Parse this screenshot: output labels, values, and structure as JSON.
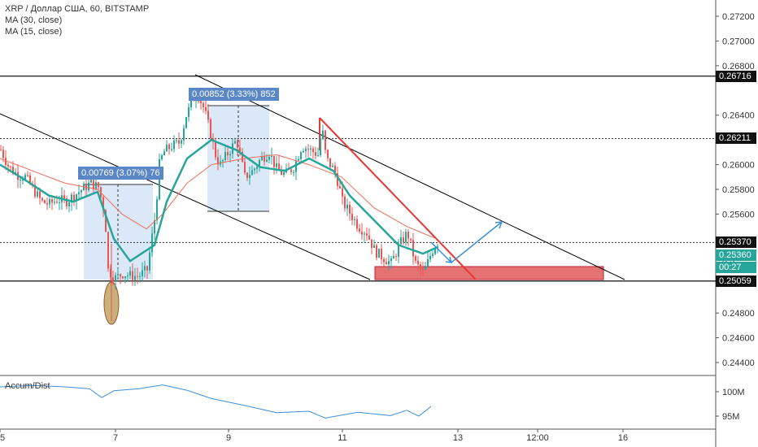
{
  "legend": {
    "title": "XRP / Доллар США, 60, BITSTAMP",
    "ma30": "MA (30, close)",
    "ma15": "MA (15, close)"
  },
  "indicator": {
    "name": "Accum/Dist"
  },
  "price_axis": {
    "ticks": [
      "0.27200",
      "0.27000",
      "0.26800",
      "0.26400",
      "0.26000",
      "0.25800",
      "0.25600",
      "0.24800",
      "0.24600",
      "0.24400"
    ],
    "tags": [
      {
        "label": "0.26716",
        "kind": "level"
      },
      {
        "label": "0.26211",
        "kind": "level"
      },
      {
        "label": "0.25370",
        "kind": "level"
      },
      {
        "label": "0.25360",
        "kind": "last"
      },
      {
        "label": "00:27",
        "kind": "timer"
      },
      {
        "label": "0.25059",
        "kind": "level"
      }
    ]
  },
  "indicator_axis": {
    "ticks": [
      "100M",
      "95M"
    ]
  },
  "time_axis": {
    "ticks": [
      "5",
      "7",
      "9",
      "11",
      "13",
      "12:00",
      "16"
    ]
  },
  "measurements": [
    {
      "label": "0.00769 (3.07%) 76"
    },
    {
      "label": "0.00852 (3.33%) 852"
    }
  ],
  "colors": {
    "up": "#26a69a",
    "down": "#ef5350",
    "ma30": "#ef6c57",
    "ma15": "#26a69a",
    "trend": "#000000",
    "red_trend": "#e53935",
    "zone": "#e57373",
    "arrow": "#3d8fd6",
    "measure_box": "#dbe8f8",
    "ellipse": "#c8b27a"
  },
  "chart_data": {
    "type": "candlestick",
    "title": "XRP / Доллар США, 60, BITSTAMP",
    "series": [
      {
        "name": "MA (30, close)"
      },
      {
        "name": "MA (15, close)"
      },
      {
        "name": "Accum/Dist"
      }
    ],
    "ylim": [
      0.243,
      0.2732
    ],
    "horizontal_levels": [
      0.26716,
      0.26211,
      0.2537,
      0.25059
    ],
    "last_price": 0.2536,
    "close_path": [
      [
        0,
        0.2612
      ],
      [
        10,
        0.2598
      ],
      [
        20,
        0.2592
      ],
      [
        30,
        0.259
      ],
      [
        40,
        0.258
      ],
      [
        50,
        0.257
      ],
      [
        60,
        0.2568
      ],
      [
        70,
        0.2572
      ],
      [
        80,
        0.257
      ],
      [
        90,
        0.2575
      ],
      [
        100,
        0.258
      ],
      [
        110,
        0.2585
      ],
      [
        120,
        0.2582
      ],
      [
        128,
        0.256
      ],
      [
        132,
        0.2515
      ],
      [
        140,
        0.2508
      ],
      [
        150,
        0.2512
      ],
      [
        160,
        0.251
      ],
      [
        170,
        0.251
      ],
      [
        180,
        0.2515
      ],
      [
        190,
        0.256
      ],
      [
        195,
        0.26
      ],
      [
        200,
        0.261
      ],
      [
        210,
        0.2615
      ],
      [
        220,
        0.2618
      ],
      [
        228,
        0.264
      ],
      [
        235,
        0.265
      ],
      [
        240,
        0.266
      ],
      [
        250,
        0.2645
      ],
      [
        260,
        0.262
      ],
      [
        265,
        0.2605
      ],
      [
        270,
        0.26
      ],
      [
        280,
        0.261
      ],
      [
        290,
        0.262
      ],
      [
        300,
        0.259
      ],
      [
        310,
        0.2595
      ],
      [
        320,
        0.2605
      ],
      [
        330,
        0.261
      ],
      [
        340,
        0.2595
      ],
      [
        350,
        0.2592
      ],
      [
        360,
        0.2598
      ],
      [
        370,
        0.2615
      ],
      [
        380,
        0.2612
      ],
      [
        390,
        0.2608
      ],
      [
        395,
        0.263
      ],
      [
        400,
        0.2605
      ],
      [
        410,
        0.2595
      ],
      [
        415,
        0.2585
      ],
      [
        420,
        0.257
      ],
      [
        430,
        0.256
      ],
      [
        440,
        0.255
      ],
      [
        450,
        0.2545
      ],
      [
        460,
        0.253
      ],
      [
        470,
        0.2525
      ],
      [
        480,
        0.252
      ],
      [
        490,
        0.2535
      ],
      [
        500,
        0.2545
      ],
      [
        510,
        0.252
      ],
      [
        520,
        0.2512
      ],
      [
        530,
        0.253
      ],
      [
        537,
        0.2537
      ]
    ],
    "ma30_path": [
      [
        0,
        0.2605
      ],
      [
        40,
        0.2595
      ],
      [
        80,
        0.2585
      ],
      [
        120,
        0.258
      ],
      [
        150,
        0.256
      ],
      [
        180,
        0.2548
      ],
      [
        200,
        0.256
      ],
      [
        230,
        0.2585
      ],
      [
        260,
        0.26
      ],
      [
        300,
        0.2605
      ],
      [
        340,
        0.2608
      ],
      [
        380,
        0.26
      ],
      [
        420,
        0.259
      ],
      [
        460,
        0.2565
      ],
      [
        500,
        0.255
      ],
      [
        537,
        0.254
      ]
    ],
    "ma15_path": [
      [
        0,
        0.26
      ],
      [
        30,
        0.2588
      ],
      [
        60,
        0.2575
      ],
      [
        90,
        0.257
      ],
      [
        120,
        0.2578
      ],
      [
        140,
        0.254
      ],
      [
        160,
        0.2522
      ],
      [
        190,
        0.2535
      ],
      [
        205,
        0.257
      ],
      [
        230,
        0.2605
      ],
      [
        260,
        0.262
      ],
      [
        290,
        0.2612
      ],
      [
        320,
        0.2598
      ],
      [
        350,
        0.2595
      ],
      [
        380,
        0.2605
      ],
      [
        410,
        0.2595
      ],
      [
        430,
        0.2575
      ],
      [
        460,
        0.2555
      ],
      [
        490,
        0.2535
      ],
      [
        520,
        0.2528
      ],
      [
        537,
        0.2533
      ]
    ],
    "ad_path": [
      [
        0,
        101.0
      ],
      [
        40,
        101.3
      ],
      [
        80,
        101.0
      ],
      [
        110,
        100.6
      ],
      [
        125,
        98.8
      ],
      [
        140,
        100.2
      ],
      [
        170,
        100.6
      ],
      [
        200,
        101.4
      ],
      [
        230,
        100.3
      ],
      [
        260,
        98.6
      ],
      [
        300,
        97.2
      ],
      [
        340,
        95.7
      ],
      [
        380,
        96.0
      ],
      [
        400,
        94.6
      ],
      [
        440,
        95.8
      ],
      [
        480,
        95.1
      ],
      [
        500,
        96.2
      ],
      [
        515,
        95.0
      ],
      [
        530,
        97.0
      ]
    ],
    "ad_ylim": [
      93.5,
      103.5
    ]
  }
}
